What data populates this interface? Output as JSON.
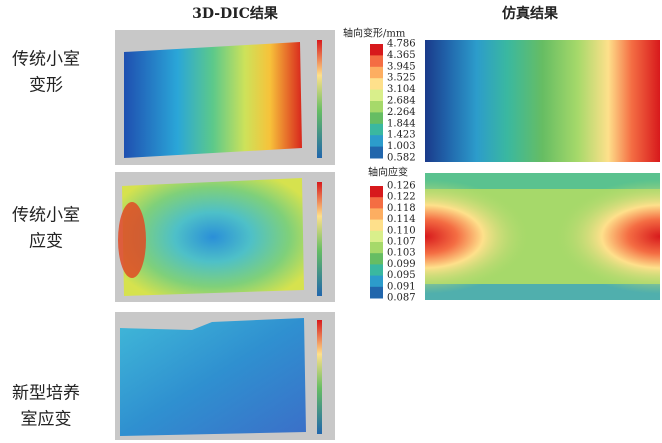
{
  "columns": [
    "3D-DIC结果",
    "仿真结果"
  ],
  "rows": [
    {
      "label": [
        "传统小室",
        "变形"
      ]
    },
    {
      "label": [
        "传统小室",
        "应变"
      ]
    },
    {
      "label": [
        "新型培养",
        "室应变"
      ]
    }
  ],
  "legends": [
    {
      "title": "轴向变形/mm",
      "labels": [
        "4.786",
        "4.365",
        "3.945",
        "3.525",
        "3.104",
        "2.684",
        "2.264",
        "1.844",
        "1.423",
        "1.003",
        "0.582"
      ]
    },
    {
      "title": "轴向应变",
      "labels": [
        "0.126",
        "0.122",
        "0.118",
        "0.114",
        "0.110",
        "0.107",
        "0.103",
        "0.099",
        "0.095",
        "0.091",
        "0.087"
      ]
    }
  ]
}
